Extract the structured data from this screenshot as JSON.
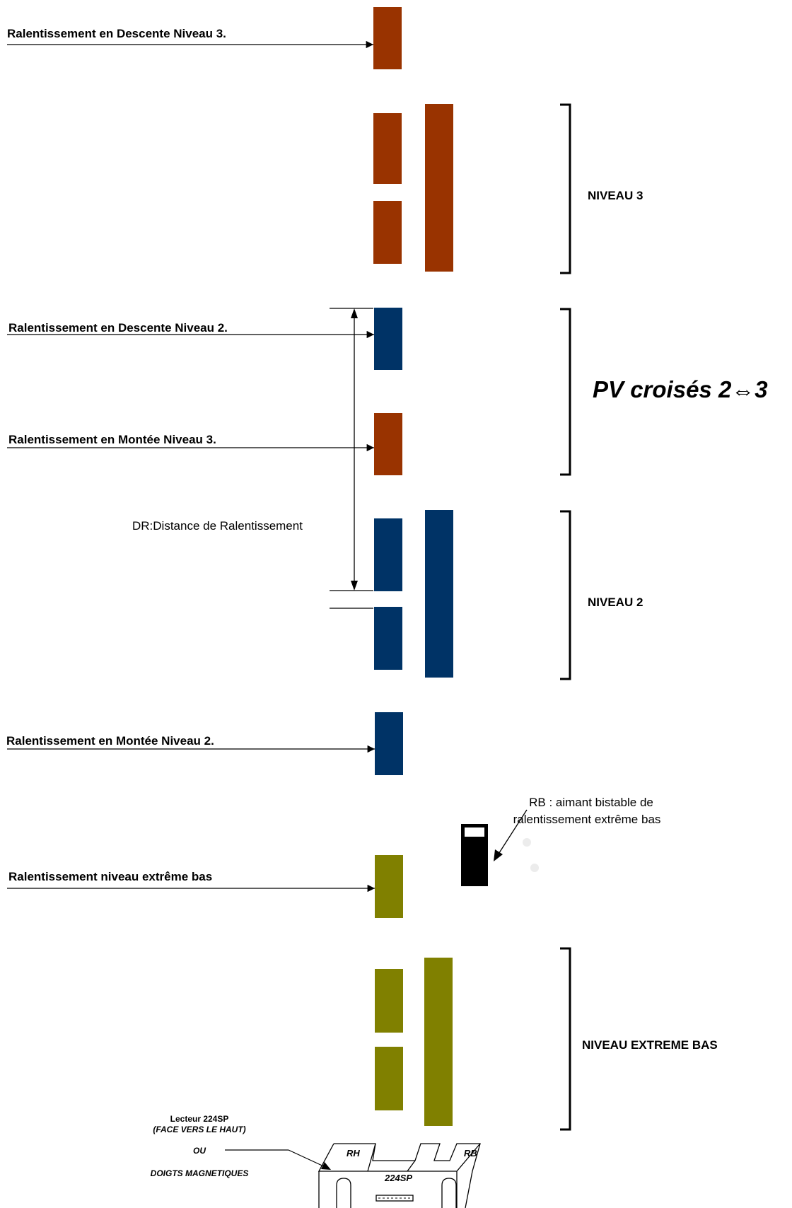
{
  "colors": {
    "level3": "#993300",
    "level2": "#003366",
    "extreme": "#808000",
    "magnet": "#000000"
  },
  "labels": {
    "descente_n3": "Ralentissement en Descente Niveau 3.",
    "descente_n2": "Ralentissement en Descente Niveau 2.",
    "montee_n3": "Ralentissement en Montée Niveau 3.",
    "montee_n2": "Ralentissement en Montée Niveau 2.",
    "extreme_bas": "Ralentissement niveau extrême bas",
    "dr": "DR:Distance de Ralentissement"
  },
  "levels": {
    "niveau3": "NIVEAU 3",
    "pv_croises": "PV croisés 2⇔3",
    "niveau2": "NIVEAU 2",
    "extreme": "NIVEAU EXTREME BAS"
  },
  "magnet": {
    "line1": "RB : aimant bistable de",
    "line2": "ralentissement extrême bas"
  },
  "reader": {
    "title": "Lecteur 224SP",
    "subtitle": "(FACE VERS LE HAUT)",
    "or": "OU",
    "alt": "DOIGTS MAGNETIQUES",
    "rh": "RH",
    "rb": "RB",
    "model": "224SP"
  }
}
